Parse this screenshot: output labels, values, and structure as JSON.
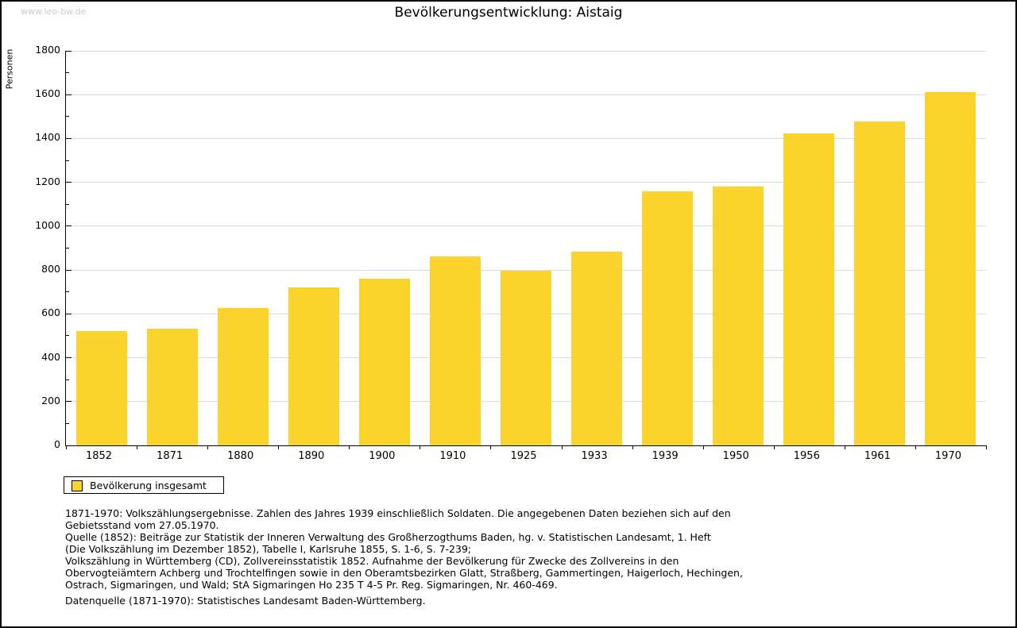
{
  "page": {
    "watermark": "www.leo-bw.de",
    "title": "Bevölkerungsentwicklung: Aistaig"
  },
  "chart_data": {
    "type": "bar",
    "title": "Bevölkerungsentwicklung: Aistaig",
    "ylabel": "Personen",
    "xlabel": "",
    "categories": [
      "1852",
      "1871",
      "1880",
      "1890",
      "1900",
      "1910",
      "1925",
      "1933",
      "1939",
      "1950",
      "1956",
      "1961",
      "1970"
    ],
    "values": [
      520,
      532,
      625,
      719,
      762,
      862,
      798,
      882,
      1158,
      1181,
      1424,
      1477,
      1613
    ],
    "series_name": "Bevölkerung insgesamt",
    "ylim": [
      0,
      1800
    ],
    "ytick_major": 200,
    "ytick_minor": 100,
    "grid": true,
    "legend_position": "bottom-left",
    "bar_color": "#FBD32C"
  },
  "legend": {
    "label": "Bevölkerung insgesamt"
  },
  "footnotes": {
    "lines": [
      "1871-1970: Volkszählungsergebnisse. Zahlen des Jahres 1939 einschließlich Soldaten. Die angegebenen Daten beziehen sich auf den",
      "Gebietsstand vom 27.05.1970.",
      "Quelle (1852): Beiträge zur Statistik der Inneren Verwaltung des Großherzogthums Baden, hg. v. Statistischen Landesamt, 1. Heft",
      "(Die Volkszählung im Dezember 1852), Tabelle I, Karlsruhe 1855, S. 1-6, S. 7-239;",
      "Volkszählung in Württemberg (CD), Zollvereinsstatistik 1852. Aufnahme der Bevölkerung für Zwecke des Zollvereins in den",
      "Obervogteiämtern Achberg und Trochtelfingen sowie in den Oberamtsbezirken Glatt, Straßberg, Gammertingen, Haigerloch, Hechingen,",
      "Ostrach, Sigmaringen, und Wald; StA Sigmaringen Ho 235 T 4-5 Pr. Reg. Sigmaringen, Nr. 460-469."
    ],
    "datasource": "Datenquelle (1871-1970): Statistisches Landesamt Baden-Württemberg."
  },
  "colors": {
    "bar": "#FBD32C",
    "grid": "#DCDCDC",
    "axis": "#000000",
    "watermark": "#CBCBCB",
    "text": "#000000",
    "background": "#FFFFFF"
  }
}
